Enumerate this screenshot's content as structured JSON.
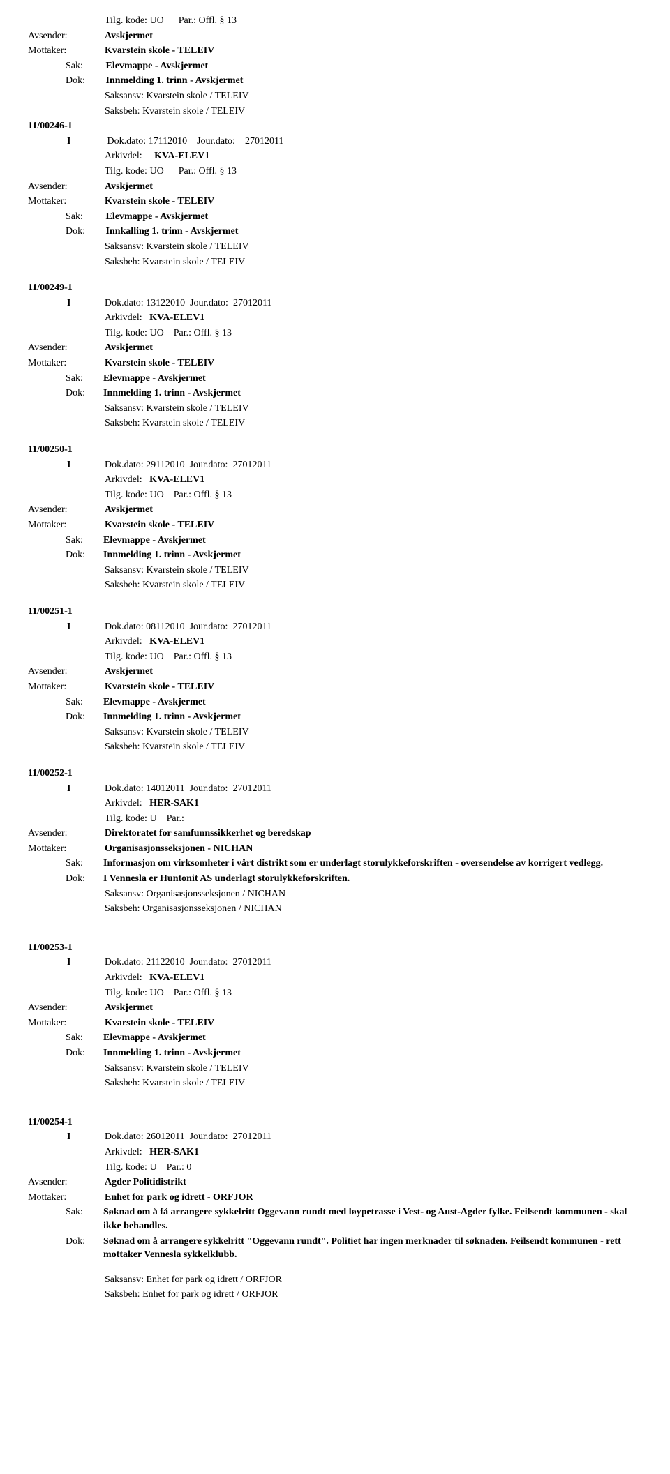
{
  "labels": {
    "tilgKode": "Tilg. kode:",
    "par": "Par.:",
    "avsender": "Avsender:",
    "mottaker": "Mottaker:",
    "sak": "Sak:",
    "dok": "Dok:",
    "dokDato": "Dok.dato:",
    "jourDato": "Jour.dato:",
    "arkivdel": "Arkivdel:",
    "saksansv": "Saksansv:",
    "saksbeh": "Saksbeh:"
  },
  "entries": [
    {
      "tilgKodeTop": "UO",
      "parTop": "Offl. § 13",
      "avsender": "Avskjermet",
      "mottaker": "Kvarstein skole - TELEIV",
      "sak": "Elevmappe - Avskjermet",
      "dok": "Innmelding 1. trinn - Avskjermet",
      "saksansv": "Kvarstein skole / TELEIV",
      "saksbeh": "Kvarstein skole / TELEIV",
      "caseId": "11/00246-1",
      "marker": "I",
      "dokDato": "17112010",
      "jourDato": "27012011",
      "arkivdel": "KVA-ELEV1",
      "tilgKodeBot": "UO",
      "parBot": "Offl. § 13",
      "avsender2": "Avskjermet",
      "mottaker2": "Kvarstein skole - TELEIV",
      "sak2": "Elevmappe - Avskjermet",
      "dok2": "Innkalling 1. trinn - Avskjermet",
      "saksansv2": "Kvarstein skole / TELEIV",
      "saksbeh2": "Kvarstein skole / TELEIV"
    },
    {
      "caseId": "11/00249-1",
      "marker": "I",
      "dokDato": "13122010",
      "jourDato": "27012011",
      "arkivdel": "KVA-ELEV1",
      "tilgKode": "UO",
      "par": "Offl. § 13",
      "avsender": "Avskjermet",
      "mottaker": "Kvarstein skole - TELEIV",
      "sak": "Elevmappe - Avskjermet",
      "dok": "Innmelding 1. trinn - Avskjermet",
      "saksansv": "Kvarstein skole / TELEIV",
      "saksbeh": "Kvarstein skole / TELEIV"
    },
    {
      "caseId": "11/00250-1",
      "marker": "I",
      "dokDato": "29112010",
      "jourDato": "27012011",
      "arkivdel": "KVA-ELEV1",
      "tilgKode": "UO",
      "par": "Offl. § 13",
      "avsender": "Avskjermet",
      "mottaker": "Kvarstein skole - TELEIV",
      "sak": "Elevmappe - Avskjermet",
      "dok": "Innmelding 1. trinn - Avskjermet",
      "saksansv": "Kvarstein skole / TELEIV",
      "saksbeh": "Kvarstein skole / TELEIV"
    },
    {
      "caseId": "11/00251-1",
      "marker": "I",
      "dokDato": "08112010",
      "jourDato": "27012011",
      "arkivdel": "KVA-ELEV1",
      "tilgKode": "UO",
      "par": "Offl. § 13",
      "avsender": "Avskjermet",
      "mottaker": "Kvarstein skole - TELEIV",
      "sak": "Elevmappe - Avskjermet",
      "dok": "Innmelding 1. trinn - Avskjermet",
      "saksansv": "Kvarstein skole / TELEIV",
      "saksbeh": "Kvarstein skole / TELEIV"
    },
    {
      "caseId": "11/00252-1",
      "marker": "I",
      "dokDato": "14012011",
      "jourDato": "27012011",
      "arkivdel": "HER-SAK1",
      "tilgKode": "U",
      "par": "",
      "avsender": "Direktoratet for samfunnssikkerhet og beredskap",
      "mottaker": "Organisasjonsseksjonen - NICHAN",
      "sak": "Informasjon om virksomheter i vårt distrikt som er underlagt storulykkeforskriften - oversendelse av korrigert vedlegg.",
      "dok": "I Vennesla er Huntonit AS underlagt storulykkeforskriften.",
      "saksansv": "Organisasjonsseksjonen / NICHAN",
      "saksbeh": "Organisasjonsseksjonen / NICHAN"
    },
    {
      "caseId": "11/00253-1",
      "marker": "I",
      "dokDato": "21122010",
      "jourDato": "27012011",
      "arkivdel": "KVA-ELEV1",
      "tilgKode": "UO",
      "par": "Offl. § 13",
      "avsender": "Avskjermet",
      "mottaker": "Kvarstein skole - TELEIV",
      "sak": "Elevmappe - Avskjermet",
      "dok": "Innmelding 1. trinn - Avskjermet",
      "saksansv": "Kvarstein skole / TELEIV",
      "saksbeh": "Kvarstein skole / TELEIV"
    },
    {
      "caseId": "11/00254-1",
      "marker": "I",
      "dokDato": "26012011",
      "jourDato": "27012011",
      "arkivdel": "HER-SAK1",
      "tilgKode": "U",
      "par": "0",
      "avsender": "Agder Politidistrikt",
      "mottaker": "Enhet for park og idrett - ORFJOR",
      "sak": "Søknad om å få arrangere sykkelritt Oggevann rundt med løypetrasse i Vest- og Aust-Agder fylke. Feilsendt kommunen - skal ikke behandles.",
      "dok": "Søknad om å arrangere sykkelritt \"Oggevann rundt\". Politiet har ingen merknader til søknaden. Feilsendt kommunen - rett mottaker Vennesla sykkelklubb.",
      "saksansv": "Enhet for park og idrett / ORFJOR",
      "saksbeh": "Enhet for park og idrett / ORFJOR",
      "extraGapBeforeSaksansv": true
    }
  ]
}
